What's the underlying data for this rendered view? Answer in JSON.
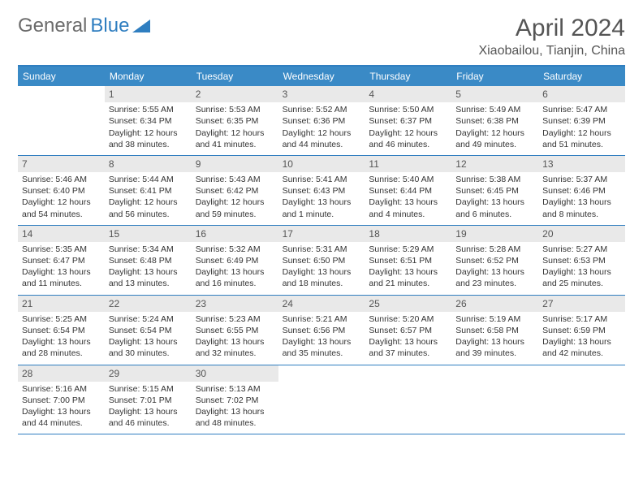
{
  "logo": {
    "part1": "General",
    "part2": "Blue"
  },
  "title": "April 2024",
  "subtitle": "Xiaobailou, Tianjin, China",
  "colors": {
    "header_bg": "#3a8ac6",
    "border": "#2f7ec0",
    "num_bg": "#e9e9e9",
    "text": "#333333",
    "title_text": "#555555"
  },
  "day_names": [
    "Sunday",
    "Monday",
    "Tuesday",
    "Wednesday",
    "Thursday",
    "Friday",
    "Saturday"
  ],
  "weeks": [
    [
      {
        "num": "",
        "empty": true
      },
      {
        "num": "1",
        "sunrise": "Sunrise: 5:55 AM",
        "sunset": "Sunset: 6:34 PM",
        "day1": "Daylight: 12 hours",
        "day2": "and 38 minutes."
      },
      {
        "num": "2",
        "sunrise": "Sunrise: 5:53 AM",
        "sunset": "Sunset: 6:35 PM",
        "day1": "Daylight: 12 hours",
        "day2": "and 41 minutes."
      },
      {
        "num": "3",
        "sunrise": "Sunrise: 5:52 AM",
        "sunset": "Sunset: 6:36 PM",
        "day1": "Daylight: 12 hours",
        "day2": "and 44 minutes."
      },
      {
        "num": "4",
        "sunrise": "Sunrise: 5:50 AM",
        "sunset": "Sunset: 6:37 PM",
        "day1": "Daylight: 12 hours",
        "day2": "and 46 minutes."
      },
      {
        "num": "5",
        "sunrise": "Sunrise: 5:49 AM",
        "sunset": "Sunset: 6:38 PM",
        "day1": "Daylight: 12 hours",
        "day2": "and 49 minutes."
      },
      {
        "num": "6",
        "sunrise": "Sunrise: 5:47 AM",
        "sunset": "Sunset: 6:39 PM",
        "day1": "Daylight: 12 hours",
        "day2": "and 51 minutes."
      }
    ],
    [
      {
        "num": "7",
        "sunrise": "Sunrise: 5:46 AM",
        "sunset": "Sunset: 6:40 PM",
        "day1": "Daylight: 12 hours",
        "day2": "and 54 minutes."
      },
      {
        "num": "8",
        "sunrise": "Sunrise: 5:44 AM",
        "sunset": "Sunset: 6:41 PM",
        "day1": "Daylight: 12 hours",
        "day2": "and 56 minutes."
      },
      {
        "num": "9",
        "sunrise": "Sunrise: 5:43 AM",
        "sunset": "Sunset: 6:42 PM",
        "day1": "Daylight: 12 hours",
        "day2": "and 59 minutes."
      },
      {
        "num": "10",
        "sunrise": "Sunrise: 5:41 AM",
        "sunset": "Sunset: 6:43 PM",
        "day1": "Daylight: 13 hours",
        "day2": "and 1 minute."
      },
      {
        "num": "11",
        "sunrise": "Sunrise: 5:40 AM",
        "sunset": "Sunset: 6:44 PM",
        "day1": "Daylight: 13 hours",
        "day2": "and 4 minutes."
      },
      {
        "num": "12",
        "sunrise": "Sunrise: 5:38 AM",
        "sunset": "Sunset: 6:45 PM",
        "day1": "Daylight: 13 hours",
        "day2": "and 6 minutes."
      },
      {
        "num": "13",
        "sunrise": "Sunrise: 5:37 AM",
        "sunset": "Sunset: 6:46 PM",
        "day1": "Daylight: 13 hours",
        "day2": "and 8 minutes."
      }
    ],
    [
      {
        "num": "14",
        "sunrise": "Sunrise: 5:35 AM",
        "sunset": "Sunset: 6:47 PM",
        "day1": "Daylight: 13 hours",
        "day2": "and 11 minutes."
      },
      {
        "num": "15",
        "sunrise": "Sunrise: 5:34 AM",
        "sunset": "Sunset: 6:48 PM",
        "day1": "Daylight: 13 hours",
        "day2": "and 13 minutes."
      },
      {
        "num": "16",
        "sunrise": "Sunrise: 5:32 AM",
        "sunset": "Sunset: 6:49 PM",
        "day1": "Daylight: 13 hours",
        "day2": "and 16 minutes."
      },
      {
        "num": "17",
        "sunrise": "Sunrise: 5:31 AM",
        "sunset": "Sunset: 6:50 PM",
        "day1": "Daylight: 13 hours",
        "day2": "and 18 minutes."
      },
      {
        "num": "18",
        "sunrise": "Sunrise: 5:29 AM",
        "sunset": "Sunset: 6:51 PM",
        "day1": "Daylight: 13 hours",
        "day2": "and 21 minutes."
      },
      {
        "num": "19",
        "sunrise": "Sunrise: 5:28 AM",
        "sunset": "Sunset: 6:52 PM",
        "day1": "Daylight: 13 hours",
        "day2": "and 23 minutes."
      },
      {
        "num": "20",
        "sunrise": "Sunrise: 5:27 AM",
        "sunset": "Sunset: 6:53 PM",
        "day1": "Daylight: 13 hours",
        "day2": "and 25 minutes."
      }
    ],
    [
      {
        "num": "21",
        "sunrise": "Sunrise: 5:25 AM",
        "sunset": "Sunset: 6:54 PM",
        "day1": "Daylight: 13 hours",
        "day2": "and 28 minutes."
      },
      {
        "num": "22",
        "sunrise": "Sunrise: 5:24 AM",
        "sunset": "Sunset: 6:54 PM",
        "day1": "Daylight: 13 hours",
        "day2": "and 30 minutes."
      },
      {
        "num": "23",
        "sunrise": "Sunrise: 5:23 AM",
        "sunset": "Sunset: 6:55 PM",
        "day1": "Daylight: 13 hours",
        "day2": "and 32 minutes."
      },
      {
        "num": "24",
        "sunrise": "Sunrise: 5:21 AM",
        "sunset": "Sunset: 6:56 PM",
        "day1": "Daylight: 13 hours",
        "day2": "and 35 minutes."
      },
      {
        "num": "25",
        "sunrise": "Sunrise: 5:20 AM",
        "sunset": "Sunset: 6:57 PM",
        "day1": "Daylight: 13 hours",
        "day2": "and 37 minutes."
      },
      {
        "num": "26",
        "sunrise": "Sunrise: 5:19 AM",
        "sunset": "Sunset: 6:58 PM",
        "day1": "Daylight: 13 hours",
        "day2": "and 39 minutes."
      },
      {
        "num": "27",
        "sunrise": "Sunrise: 5:17 AM",
        "sunset": "Sunset: 6:59 PM",
        "day1": "Daylight: 13 hours",
        "day2": "and 42 minutes."
      }
    ],
    [
      {
        "num": "28",
        "sunrise": "Sunrise: 5:16 AM",
        "sunset": "Sunset: 7:00 PM",
        "day1": "Daylight: 13 hours",
        "day2": "and 44 minutes."
      },
      {
        "num": "29",
        "sunrise": "Sunrise: 5:15 AM",
        "sunset": "Sunset: 7:01 PM",
        "day1": "Daylight: 13 hours",
        "day2": "and 46 minutes."
      },
      {
        "num": "30",
        "sunrise": "Sunrise: 5:13 AM",
        "sunset": "Sunset: 7:02 PM",
        "day1": "Daylight: 13 hours",
        "day2": "and 48 minutes."
      },
      {
        "num": "",
        "empty": true
      },
      {
        "num": "",
        "empty": true
      },
      {
        "num": "",
        "empty": true
      },
      {
        "num": "",
        "empty": true
      }
    ]
  ]
}
